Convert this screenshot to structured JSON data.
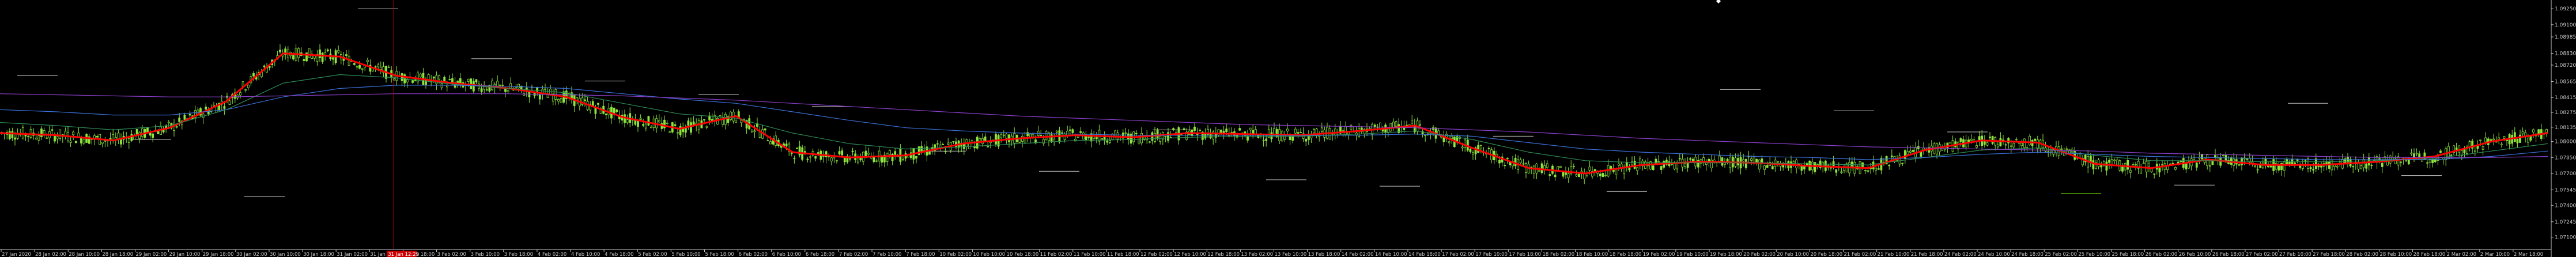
{
  "chart_data": {
    "type": "candlestick",
    "y_range": [
      1.07,
      1.093
    ],
    "y_ticks": [
      "1.09250",
      "1.09100",
      "1.08985",
      "1.08830",
      "1.08720",
      "1.08565",
      "1.08415",
      "1.08275",
      "1.08135",
      "1.08000",
      "1.07850",
      "1.07700",
      "1.07545",
      "1.07400",
      "1.07245",
      "1.07100"
    ],
    "y_tick_values": [
      1.0925,
      1.091,
      1.08985,
      1.0883,
      1.0872,
      1.08565,
      1.08415,
      1.08275,
      1.08135,
      1.08,
      1.0785,
      1.077,
      1.07545,
      1.074,
      1.07245,
      1.071
    ],
    "x_ticks": [
      "27 Jan 2020",
      "28 Jan 02:00",
      "28 Jan 10:00",
      "28 Jan 18:00",
      "29 Jan 02:00",
      "29 Jan 10:00",
      "29 Jan 18:00",
      "30 Jan 02:00",
      "30 Jan 10:00",
      "30 Jan 18:00",
      "31 Jan 02:00",
      "31 Jan 10:00",
      "31 Jan 18:00",
      "3 Feb 02:00",
      "3 Feb 10:00",
      "3 Feb 18:00",
      "4 Feb 02:00",
      "4 Feb 10:00",
      "4 Feb 18:00",
      "5 Feb 02:00",
      "5 Feb 10:00",
      "5 Feb 18:00",
      "6 Feb 02:00",
      "6 Feb 10:00",
      "6 Feb 18:00",
      "7 Feb 02:00",
      "7 Feb 10:00",
      "7 Feb 18:00",
      "10 Feb 02:00",
      "10 Feb 10:00",
      "10 Feb 18:00",
      "11 Feb 02:00",
      "11 Feb 10:00",
      "11 Feb 18:00",
      "12 Feb 02:00",
      "12 Feb 10:00",
      "12 Feb 18:00",
      "13 Feb 02:00",
      "13 Feb 10:00",
      "13 Feb 18:00",
      "14 Feb 02:00",
      "14 Feb 10:00",
      "14 Feb 18:00",
      "17 Feb 02:00",
      "17 Feb 10:00",
      "17 Feb 18:00",
      "18 Feb 02:00",
      "18 Feb 10:00",
      "18 Feb 18:00",
      "19 Feb 02:00",
      "19 Feb 10:00",
      "19 Feb 18:00",
      "20 Feb 02:00",
      "20 Feb 10:00",
      "20 Feb 18:00",
      "21 Feb 02:00",
      "21 Feb 10:00",
      "21 Feb 18:00",
      "24 Feb 02:00",
      "24 Feb 10:00",
      "24 Feb 18:00",
      "25 Feb 02:00",
      "25 Feb 10:00",
      "25 Feb 18:00",
      "26 Feb 02:00",
      "26 Feb 10:00",
      "26 Feb 18:00",
      "27 Feb 02:00",
      "27 Feb 10:00",
      "27 Feb 18:00",
      "28 Feb 02:00",
      "28 Feb 10:00",
      "28 Feb 18:00",
      "2 Mar 02:00",
      "2 Mar 10:00",
      "2 Mar 18:00"
    ],
    "highlighted_x_tick": "31 Jan 12:29",
    "highlighted_x_index": 11,
    "series": [
      {
        "name": "",
        "color": "#ff0000",
        "role": "fast MA",
        "values": [
          1.0808,
          1.0806,
          1.0801,
          1.0813,
          1.0838,
          1.0883,
          1.088,
          1.0862,
          1.0855,
          1.085,
          1.0842,
          1.0823,
          1.0812,
          1.0824,
          1.079,
          1.0785,
          1.0787,
          1.0798,
          1.0803,
          1.0806,
          1.0804,
          1.0808,
          1.0807,
          1.0806,
          1.081,
          1.0815,
          1.0794,
          1.0775,
          1.077,
          1.0778,
          1.0781,
          1.078,
          1.0777,
          1.0775,
          1.0792,
          1.0801,
          1.0799,
          1.0779,
          1.0775,
          1.0783,
          1.0778,
          1.0778,
          1.0781,
          1.0786,
          1.08,
          1.0808
        ]
      },
      {
        "name": "",
        "color": "#2e8b57",
        "role": "medium MA",
        "values": [
          1.0818,
          1.0815,
          1.0811,
          1.0815,
          1.083,
          1.0855,
          1.0863,
          1.086,
          1.0854,
          1.085,
          1.0846,
          1.0836,
          1.0826,
          1.0822,
          1.0808,
          1.0798,
          1.0793,
          1.0795,
          1.0798,
          1.0801,
          1.0802,
          1.0804,
          1.0805,
          1.0805,
          1.0807,
          1.081,
          1.0802,
          1.079,
          1.0782,
          1.078,
          1.078,
          1.078,
          1.0779,
          1.0778,
          1.0785,
          1.0792,
          1.0794,
          1.0787,
          1.0782,
          1.0782,
          1.0781,
          1.0781,
          1.0782,
          1.0784,
          1.0791,
          1.0798
        ]
      },
      {
        "name": "",
        "color": "#3b6fd6",
        "role": "slow MA",
        "values": [
          1.083,
          1.0828,
          1.0825,
          1.0825,
          1.083,
          1.0842,
          1.085,
          1.0853,
          1.0853,
          1.0852,
          1.085,
          1.0845,
          1.084,
          1.0836,
          1.0828,
          1.082,
          1.0813,
          1.081,
          1.0808,
          1.0807,
          1.0806,
          1.0806,
          1.0806,
          1.0806,
          1.0806,
          1.0807,
          1.0805,
          1.0799,
          1.0793,
          1.079,
          1.0788,
          1.0786,
          1.0785,
          1.0783,
          1.0785,
          1.0788,
          1.079,
          1.0788,
          1.0786,
          1.0785,
          1.0784,
          1.0783,
          1.0783,
          1.0783,
          1.0786,
          1.0791
        ]
      },
      {
        "name": "",
        "color": "#8a3fc9",
        "role": "long MA",
        "values": [
          1.0845,
          1.0844,
          1.0843,
          1.0842,
          1.0842,
          1.0843,
          1.0844,
          1.0845,
          1.0845,
          1.0845,
          1.0844,
          1.0843,
          1.0841,
          1.0839,
          1.0836,
          1.0833,
          1.083,
          1.0827,
          1.0824,
          1.0822,
          1.082,
          1.0818,
          1.0816,
          1.0815,
          1.0814,
          1.0813,
          1.0811,
          1.0809,
          1.0806,
          1.0803,
          1.0801,
          1.0799,
          1.0797,
          1.0795,
          1.0794,
          1.0793,
          1.0792,
          1.0791,
          1.0789,
          1.0788,
          1.0787,
          1.0786,
          1.0785,
          1.0785,
          1.0785,
          1.0786
        ]
      }
    ],
    "levels": [
      {
        "color": "#c8c8c8",
        "value": 1.0862
      },
      {
        "color": "#c8c8c8",
        "value": 1.0802
      },
      {
        "color": "#c8c8c8",
        "value": 1.0748
      },
      {
        "color": "#c8c8c8",
        "value": 1.0925
      },
      {
        "color": "#c8c8c8",
        "value": 1.0878
      },
      {
        "color": "#c8c8c8",
        "value": 1.0857
      },
      {
        "color": "#c8c8c8",
        "value": 1.0844
      },
      {
        "color": "#c8c8c8",
        "value": 1.0833
      },
      {
        "color": "#c8c8c8",
        "value": 1.0791
      },
      {
        "color": "#c8c8c8",
        "value": 1.0772
      },
      {
        "color": "#c8c8c8",
        "value": 1.0811
      },
      {
        "color": "#c8c8c8",
        "value": 1.0764
      },
      {
        "color": "#c8c8c8",
        "value": 1.0758
      },
      {
        "color": "#c8c8c8",
        "value": 1.0805
      },
      {
        "color": "#c8c8c8",
        "value": 1.0753
      },
      {
        "color": "#c8c8c8",
        "value": 1.0849
      },
      {
        "color": "#c8c8c8",
        "value": 1.0829
      },
      {
        "color": "#c8c8c8",
        "value": 1.0809
      },
      {
        "color": "#7cfc00",
        "value": 1.0751
      },
      {
        "color": "#c8c8c8",
        "value": 1.0759
      },
      {
        "color": "#c8c8c8",
        "value": 1.0836
      },
      {
        "color": "#c8c8c8",
        "value": 1.0768
      }
    ],
    "grid": false,
    "candle_color": "#8ee53f",
    "vline_color": "#cc0000"
  }
}
